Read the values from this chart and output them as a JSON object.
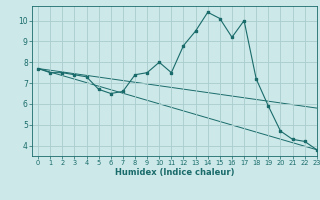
{
  "xlabel": "Humidex (Indice chaleur)",
  "ylabel": "",
  "background_color": "#cce8e8",
  "grid_color": "#aacccc",
  "line_color": "#1a6b6b",
  "xlim": [
    -0.5,
    23
  ],
  "ylim": [
    3.5,
    10.7
  ],
  "xticks": [
    0,
    1,
    2,
    3,
    4,
    5,
    6,
    7,
    8,
    9,
    10,
    11,
    12,
    13,
    14,
    15,
    16,
    17,
    18,
    19,
    20,
    21,
    22,
    23
  ],
  "yticks": [
    4,
    5,
    6,
    7,
    8,
    9,
    10
  ],
  "series1_x": [
    0,
    1,
    2,
    3,
    4,
    5,
    6,
    7,
    8,
    9,
    10,
    11,
    12,
    13,
    14,
    15,
    16,
    17,
    18,
    19,
    20,
    21,
    22,
    23
  ],
  "series1_y": [
    7.7,
    7.5,
    7.5,
    7.4,
    7.3,
    6.7,
    6.5,
    6.6,
    7.4,
    7.5,
    8.0,
    7.5,
    8.8,
    9.5,
    10.4,
    10.1,
    9.2,
    10.0,
    7.2,
    5.9,
    4.7,
    4.3,
    4.2,
    3.8
  ],
  "series2_x": [
    0,
    23
  ],
  "series2_y": [
    7.7,
    5.8
  ],
  "series3_x": [
    0,
    23
  ],
  "series3_y": [
    7.7,
    3.8
  ]
}
